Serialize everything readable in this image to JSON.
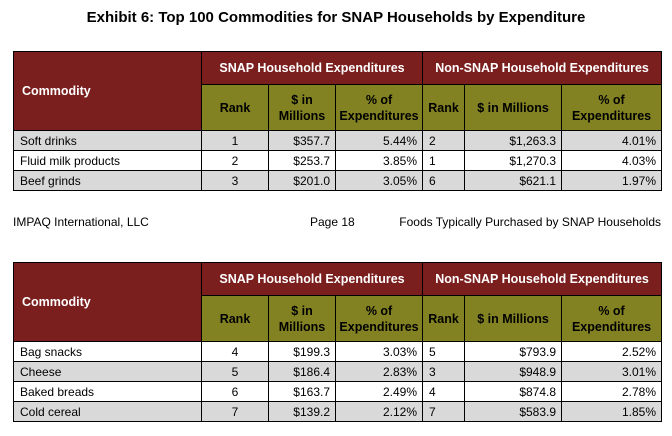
{
  "title": "Exhibit 6: Top 100 Commodities for SNAP Households by Expenditure",
  "headers": {
    "commodity": "Commodity",
    "snap_group": "SNAP Household Expenditures",
    "nonsnap_group": "Non-SNAP Household Expenditures",
    "rank": "Rank",
    "millions_1": "$ in",
    "millions_2": "Millions",
    "pct_1": "% of",
    "pct_2": "Expenditures",
    "millions_combined": "$ in Millions"
  },
  "table1": {
    "rows": [
      {
        "commodity": "Soft drinks",
        "snap_rank": "1",
        "snap_millions": "$357.7",
        "snap_pct": "5.44%",
        "non_rank": "2",
        "non_millions": "$1,263.3",
        "non_pct": "4.01%"
      },
      {
        "commodity": "Fluid milk products",
        "snap_rank": "2",
        "snap_millions": "$253.7",
        "snap_pct": "3.85%",
        "non_rank": "1",
        "non_millions": "$1,270.3",
        "non_pct": "4.03%"
      },
      {
        "commodity": "Beef grinds",
        "snap_rank": "3",
        "snap_millions": "$201.0",
        "snap_pct": "3.05%",
        "non_rank": "6",
        "non_millions": "$621.1",
        "non_pct": "1.97%"
      }
    ]
  },
  "footer": {
    "left": "IMPAQ International, LLC",
    "middle": "Page 18",
    "right": "Foods Typically Purchased by SNAP Households"
  },
  "table2": {
    "rows": [
      {
        "commodity": "Bag snacks",
        "snap_rank": "4",
        "snap_millions": "$199.3",
        "snap_pct": "3.03%",
        "non_rank": "5",
        "non_millions": "$793.9",
        "non_pct": "2.52%"
      },
      {
        "commodity": "Cheese",
        "snap_rank": "5",
        "snap_millions": "$186.4",
        "snap_pct": "2.83%",
        "non_rank": "3",
        "non_millions": "$948.9",
        "non_pct": "3.01%"
      },
      {
        "commodity": "Baked breads",
        "snap_rank": "6",
        "snap_millions": "$163.7",
        "snap_pct": "2.49%",
        "non_rank": "4",
        "non_millions": "$874.8",
        "non_pct": "2.78%"
      },
      {
        "commodity": "Cold cereal",
        "snap_rank": "7",
        "snap_millions": "$139.2",
        "snap_pct": "2.12%",
        "non_rank": "7",
        "non_millions": "$583.9",
        "non_pct": "1.85%"
      }
    ]
  },
  "colors": {
    "header_maroon": "#7b1e1e",
    "subheader_olive": "#828223",
    "alt_row_gray": "#d9d9d9"
  }
}
